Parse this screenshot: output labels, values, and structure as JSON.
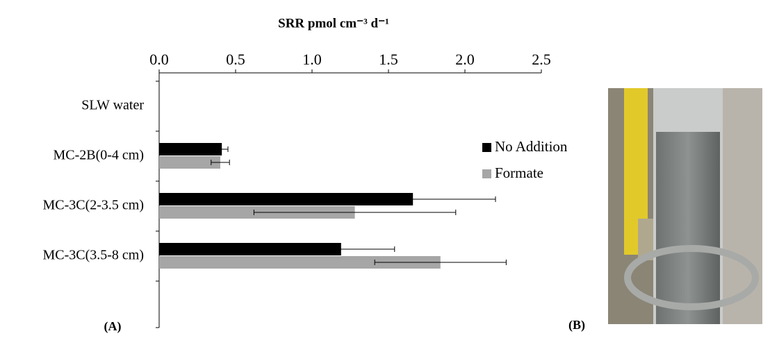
{
  "chart_data": {
    "type": "barh",
    "x_label": "SRR pmol cm⁻³ d⁻¹",
    "categories": [
      "SLW water",
      "MC-2B(0-4 cm)",
      "MC-3C(2-3.5 cm)",
      "MC-3C(3.5-8 cm)"
    ],
    "series": [
      {
        "name": "No Addition",
        "color": "#000000",
        "values": [
          null,
          0.41,
          1.66,
          1.19
        ],
        "errors": [
          null,
          0.04,
          0.54,
          0.35
        ]
      },
      {
        "name": "Formate",
        "color": "#a6a6a6",
        "values": [
          null,
          0.4,
          1.28,
          1.84
        ],
        "errors": [
          null,
          0.06,
          0.66,
          0.43
        ]
      }
    ],
    "xlim": [
      0,
      2.5
    ],
    "xticks": [
      {
        "value": 0,
        "label": "0.0"
      },
      0.5,
      {
        "value": 1,
        "label": "1.0"
      },
      1.5,
      {
        "value": 2,
        "label": "2.0"
      },
      2.5
    ],
    "legend": "right",
    "panel_labels": [
      "(A)",
      "(B)"
    ]
  }
}
